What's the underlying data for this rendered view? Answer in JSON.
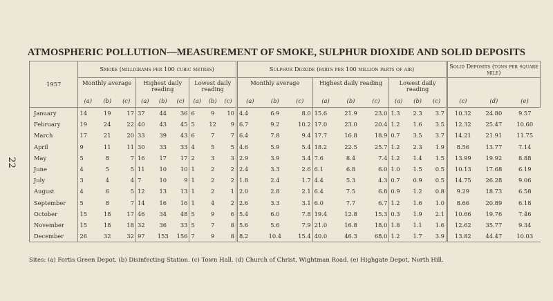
{
  "page_number": "22",
  "title": "ATMOSPHERIC POLLUTION—MEASUREMENT OF SMOKE, SULPHUR DIOXIDE AND SOLID DEPOSITS",
  "header": {
    "year": "1957",
    "smoke": "Smoke (milligrams per 100 cubic metres)",
    "so2": "Sulphur Dioxide (parts per 100 million parts of air)",
    "solid": "Solid Deposits (tons per square mile)",
    "monthly": "Monthly average",
    "highest": "Highest daily reading",
    "lowest": "Lowest daily reading",
    "sub_smoke": [
      "(a)",
      "(b)",
      "(c)",
      "(a)",
      "(b)",
      "(c)",
      "(a)",
      "(b)",
      "(c)"
    ],
    "sub_so2": [
      "(a)",
      "(b)",
      "(c)",
      "(a)",
      "(b)",
      "(c)",
      "(a)",
      "(b)",
      "(c)"
    ],
    "sub_solid": [
      "(c)",
      "(d)",
      "(e)"
    ]
  },
  "rows": [
    [
      "January",
      "14",
      "19",
      "17",
      "37",
      "44",
      "36",
      "6",
      "9",
      "10",
      "4.4",
      "6.9",
      "8.0",
      "15.6",
      "21.9",
      "23.0",
      "1.3",
      "2.3",
      "3.7",
      "10.32",
      "24.80",
      "9.57"
    ],
    [
      "February",
      "19",
      "24",
      "22",
      "40",
      "43",
      "45",
      "5",
      "12",
      "9",
      "6.7",
      "9.2",
      "10.2",
      "17.0",
      "23.0",
      "20.4",
      "1.2",
      "1.6",
      "3.5",
      "12.32",
      "25.47",
      "10.60"
    ],
    [
      "March",
      "17",
      "21",
      "20",
      "33",
      "39",
      "43",
      "6",
      "7",
      "7",
      "6.4",
      "7.8",
      "9.4",
      "17.7",
      "16.8",
      "18.9",
      "0.7",
      "3.5",
      "3.7",
      "14.21",
      "21.91",
      "11.75"
    ],
    [
      "April",
      "9",
      "11",
      "11",
      "30",
      "33",
      "33",
      "4",
      "5",
      "5",
      "4.6",
      "5.9",
      "5.4",
      "18.2",
      "22.5",
      "25.7",
      "1.2",
      "2.3",
      "1.9",
      "8.56",
      "13.77",
      "7.14"
    ],
    [
      "May",
      "5",
      "8",
      "7",
      "16",
      "17",
      "17",
      "2",
      "3",
      "3",
      "2.9",
      "3.9",
      "3.4",
      "7.6",
      "8.4",
      "7.4",
      "1.2",
      "1.4",
      "1.5",
      "13.99",
      "19.92",
      "8.88"
    ],
    [
      "June",
      "4",
      "5",
      "5",
      "11",
      "10",
      "10",
      "1",
      "2",
      "2",
      "2.4",
      "3.3",
      "2.6",
      "6.1",
      "6.8",
      "6.0",
      "1.0",
      "1.5",
      "0.5",
      "10.13",
      "17.68",
      "6.19"
    ],
    [
      "July",
      "3",
      "4",
      "4",
      "7",
      "10",
      "9",
      "1",
      "2",
      "2",
      "1.8",
      "2.4",
      "1.7",
      "4.4",
      "5.3",
      "4.3",
      "0.7",
      "0.9",
      "0.5",
      "14.75",
      "26.28",
      "9.06"
    ],
    [
      "August",
      "4",
      "6",
      "5",
      "12",
      "13",
      "13",
      "1",
      "2",
      "1",
      "2.0",
      "2.8",
      "2.1",
      "6.4",
      "7.5",
      "6.8",
      "0.9",
      "1.2",
      "0.8",
      "9.29",
      "18.73",
      "6.58"
    ],
    [
      "September",
      "5",
      "8",
      "7",
      "14",
      "16",
      "16",
      "1",
      "4",
      "2",
      "2.6",
      "3.3",
      "3.1",
      "6.0",
      "7.7",
      "6.7",
      "1.2",
      "1.6",
      "1.0",
      "8.66",
      "20.89",
      "6.18"
    ],
    [
      "October",
      "15",
      "18",
      "17",
      "46",
      "34",
      "48",
      "5",
      "9",
      "6",
      "5.4",
      "6.0",
      "7.8",
      "19.4",
      "12.8",
      "15.3",
      "0.3",
      "1.9",
      "2.1",
      "10.66",
      "19.76",
      "7.46"
    ],
    [
      "November",
      "15",
      "18",
      "18",
      "32",
      "36",
      "33",
      "5",
      "7",
      "8",
      "5.6",
      "5.6",
      "7.9",
      "21.0",
      "16.8",
      "18.0",
      "1.8",
      "1.1",
      "1.6",
      "12.62",
      "35.77",
      "9.34"
    ],
    [
      "December",
      "26",
      "32",
      "32",
      "97",
      "153",
      "156",
      "7",
      "9",
      "8",
      "8.2",
      "10.4",
      "15.4",
      "40.0",
      "46.3",
      "68.0",
      "1.2",
      "1.7",
      "3.9",
      "13.82",
      "44.47",
      "10.03"
    ]
  ],
  "sites": "Sites: (a) Fortis Green Depot.   (b) Disinfecting Station.   (c) Town Hall.   (d) Church of Christ, Wightman Road.   (e) Highgate Depot, North Hill."
}
